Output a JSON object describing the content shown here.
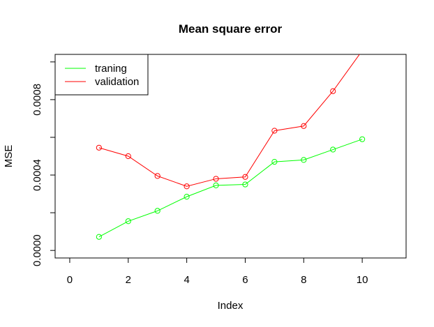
{
  "chart_data": {
    "type": "line",
    "title": "Mean square error",
    "xlabel": "Index",
    "ylabel": "MSE",
    "xlim": [
      -0.5,
      11.5
    ],
    "ylim": [
      -4e-05,
      0.00104
    ],
    "x_ticks": [
      0,
      2,
      4,
      6,
      8,
      10
    ],
    "x_tick_labels": [
      "0",
      "2",
      "4",
      "6",
      "8",
      "10"
    ],
    "y_ticks": [
      0,
      0.0004,
      0.0008
    ],
    "y_tick_labels": [
      "0.0000",
      "0.0004",
      "0.0008"
    ],
    "x": [
      1,
      2,
      3,
      4,
      5,
      6,
      7,
      8,
      9,
      10
    ],
    "series": [
      {
        "name": "traning",
        "color": "#00ff00",
        "values": [
          7.2e-05,
          0.000155,
          0.00021,
          0.000285,
          0.000345,
          0.00035,
          0.00047,
          0.00048,
          0.000535,
          0.00059
        ]
      },
      {
        "name": "validation",
        "color": "#ff0000",
        "values": [
          0.000545,
          0.0005,
          0.000395,
          0.00034,
          0.00038,
          0.00039,
          0.000635,
          0.00066,
          0.000845,
          0.00106
        ]
      }
    ],
    "grid": false,
    "legend_position": "top-left"
  }
}
